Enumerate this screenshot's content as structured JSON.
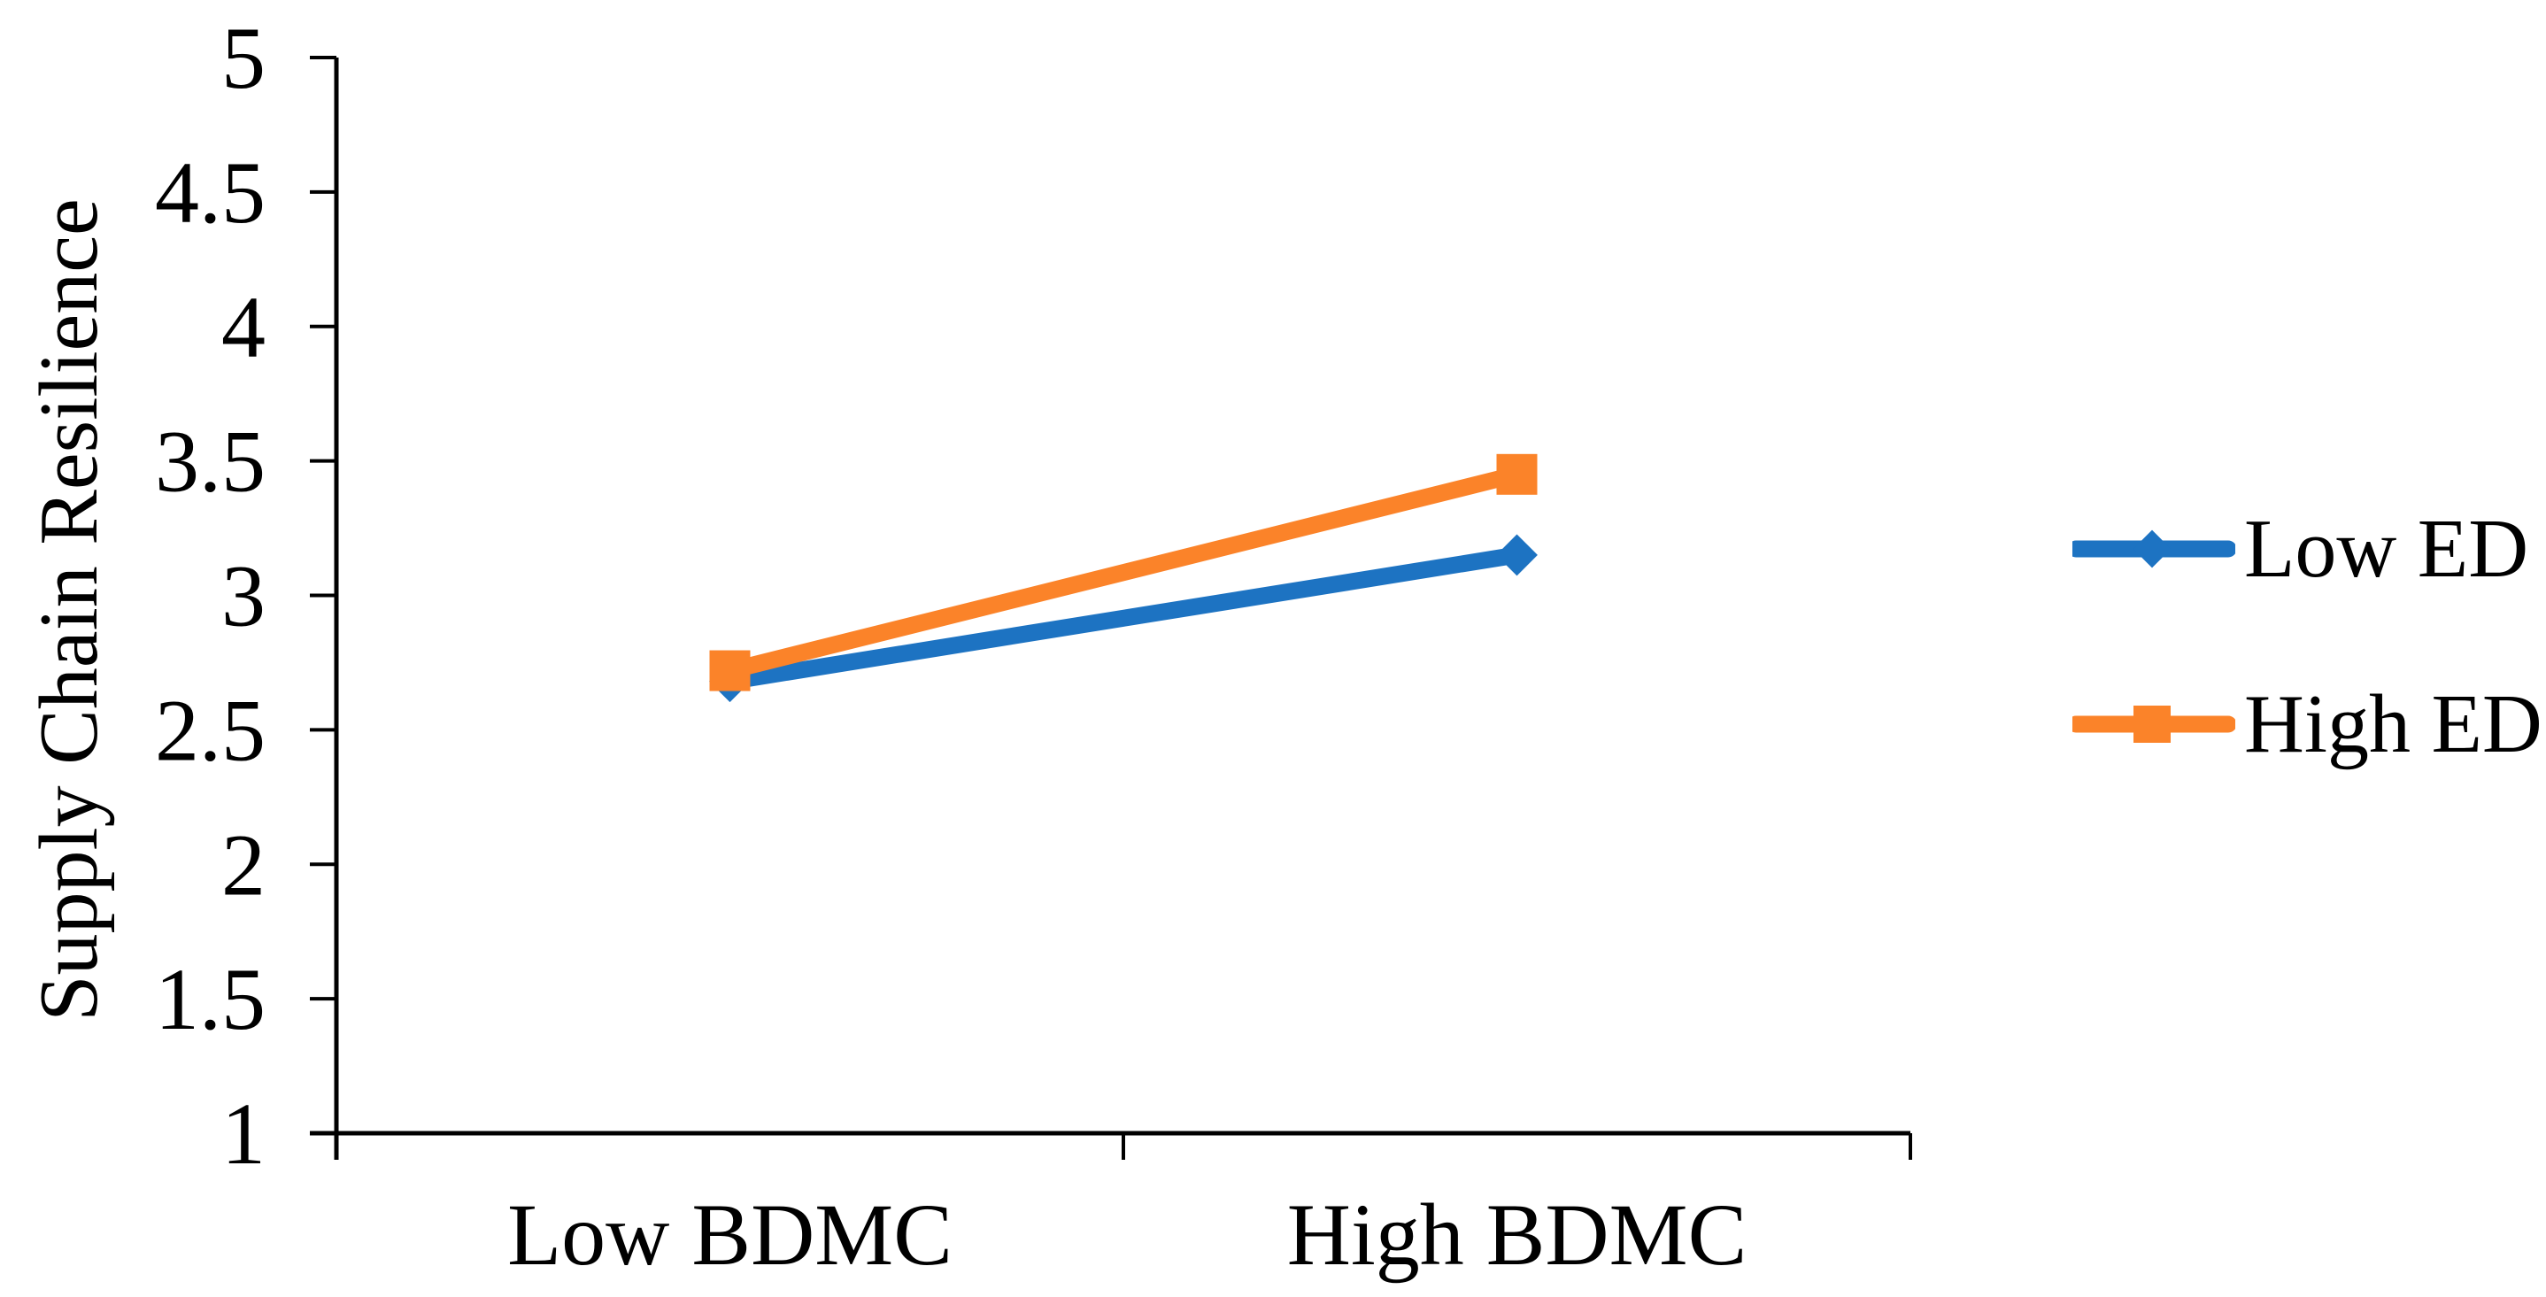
{
  "chart_data": {
    "type": "line",
    "categories": [
      "Low BDMC",
      "High BDMC"
    ],
    "series": [
      {
        "name": "Low ED",
        "color": "#1D73C2",
        "marker": "diamond",
        "values": [
          2.68,
          3.15
        ]
      },
      {
        "name": "High ED",
        "color": "#FB8329",
        "marker": "square",
        "values": [
          2.72,
          3.45
        ]
      }
    ],
    "ylabel": "Supply Chain Resilience",
    "ylim": [
      1,
      5
    ],
    "ytick_step": 0.5,
    "ytick_labels": [
      "5",
      "4.5",
      "4",
      "3.5",
      "3",
      "2.5",
      "2",
      "1.5",
      "1"
    ],
    "grid": false,
    "legend_position": "right",
    "colors": {
      "axis": "#000000",
      "text": "#000000",
      "background": "#FFFFFF"
    }
  }
}
